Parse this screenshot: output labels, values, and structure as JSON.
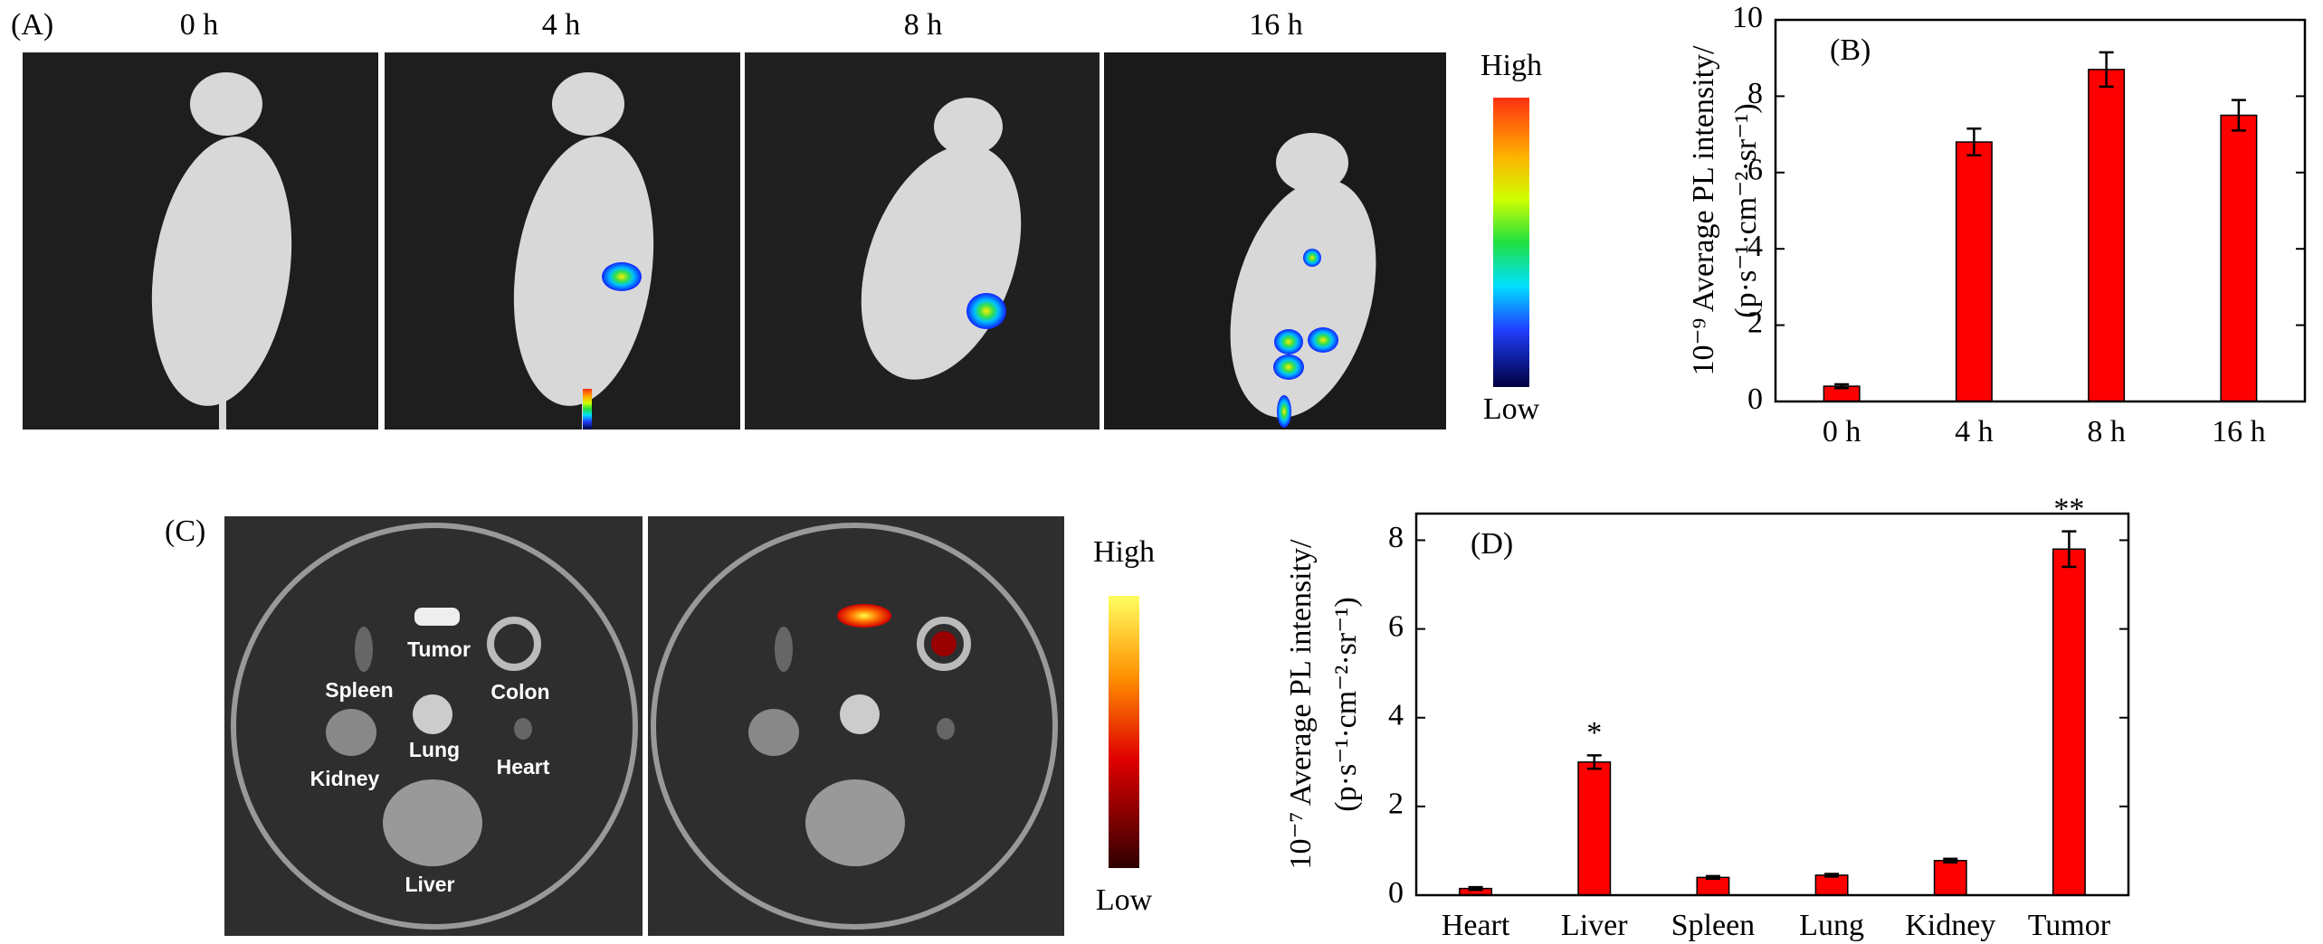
{
  "panel_a": {
    "label": "(A)",
    "times": [
      "0 h",
      "4 h",
      "8 h",
      "16 h"
    ],
    "scale_high": "High",
    "scale_low": "Low"
  },
  "panel_c": {
    "label": "(C)",
    "organs": [
      "Tumor",
      "Colon",
      "Spleen",
      "Lung",
      "Kidney",
      "Heart",
      "Liver"
    ],
    "scale_high": "High",
    "scale_low": "Low"
  },
  "chart_data": [
    {
      "type": "bar",
      "panel_label": "(B)",
      "ylabel": [
        "10⁻⁹ Average PL intensity/",
        "(p·s⁻¹·cm⁻²·sr⁻¹)"
      ],
      "categories": [
        "0 h",
        "4 h",
        "8 h",
        "16 h"
      ],
      "values": [
        0.4,
        6.8,
        8.7,
        7.5
      ],
      "errors": [
        0.05,
        0.35,
        0.45,
        0.4
      ],
      "color": "#ff0000",
      "ylim": [
        0,
        10
      ],
      "yticks": [
        0,
        2,
        4,
        6,
        8,
        10
      ]
    },
    {
      "type": "bar",
      "panel_label": "(D)",
      "ylabel": [
        "10⁻⁷ Average PL intensity/",
        "(p·s⁻¹·cm⁻²·sr⁻¹)"
      ],
      "categories": [
        "Heart",
        "Liver",
        "Spleen",
        "Lung",
        "Kidney",
        "Tumor"
      ],
      "values": [
        0.15,
        3.0,
        0.4,
        0.45,
        0.78,
        7.8
      ],
      "errors": [
        0.03,
        0.15,
        0.03,
        0.03,
        0.04,
        0.4
      ],
      "annotations": [
        {
          "category": "Liver",
          "text": "*"
        },
        {
          "category": "Tumor",
          "text": "**"
        }
      ],
      "color": "#ff0000",
      "ylim": [
        0,
        8.6
      ],
      "yticks": [
        0,
        2,
        4,
        6,
        8
      ]
    }
  ]
}
